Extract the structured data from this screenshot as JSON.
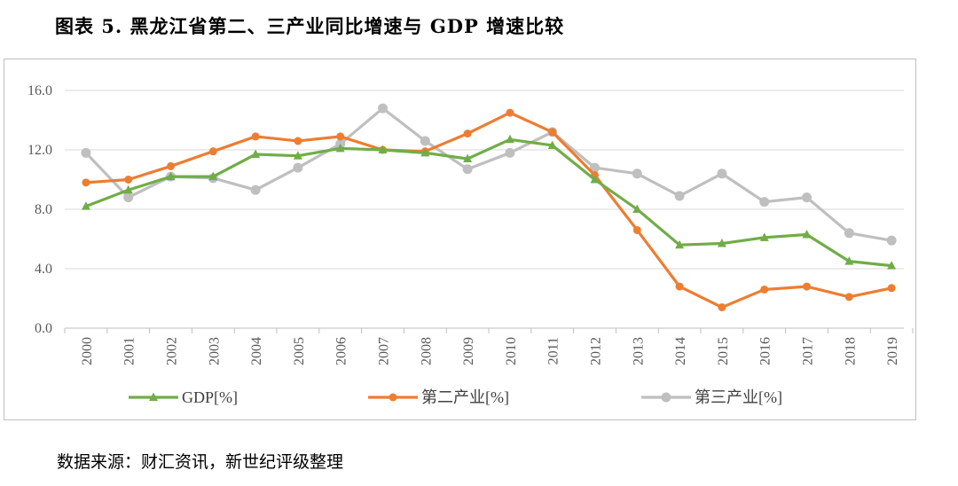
{
  "figure": {
    "title": "图表 5. 黑龙江省第二、三产业同比增速与 GDP 增速比较",
    "source": "数据来源：财汇资讯，新世纪评级整理"
  },
  "chart_data": {
    "type": "line",
    "categories": [
      "2000",
      "2001",
      "2002",
      "2003",
      "2004",
      "2005",
      "2006",
      "2007",
      "2008",
      "2009",
      "2010",
      "2011",
      "2012",
      "2013",
      "2014",
      "2015",
      "2016",
      "2017",
      "2018",
      "2019"
    ],
    "ylim": [
      0,
      16
    ],
    "yticks": [
      "0.0",
      "4.0",
      "8.0",
      "12.0",
      "16.0"
    ],
    "grid": true,
    "legend_position": "bottom",
    "series": [
      {
        "name": "GDP[%]",
        "color": "#70ad47",
        "marker": "triangle",
        "values": [
          8.2,
          9.3,
          10.2,
          10.2,
          11.7,
          11.6,
          12.1,
          12.0,
          11.8,
          11.4,
          12.7,
          12.3,
          10.0,
          8.0,
          5.6,
          5.7,
          6.1,
          6.3,
          4.5,
          4.2
        ]
      },
      {
        "name": "第二产业[%]",
        "color": "#ed7d31",
        "marker": "circle",
        "values": [
          9.8,
          10.0,
          10.9,
          11.9,
          12.9,
          12.6,
          12.9,
          12.0,
          11.9,
          13.1,
          14.5,
          13.2,
          10.3,
          6.6,
          2.8,
          1.4,
          2.6,
          2.8,
          2.1,
          2.7
        ]
      },
      {
        "name": "第三产业[%]",
        "color": "#bfbfbf",
        "marker": "circle",
        "values": [
          11.8,
          8.8,
          10.2,
          10.1,
          9.3,
          10.8,
          12.4,
          14.8,
          12.6,
          10.7,
          11.8,
          13.2,
          10.8,
          10.4,
          8.9,
          10.4,
          8.5,
          8.8,
          6.4,
          5.9
        ]
      }
    ]
  }
}
